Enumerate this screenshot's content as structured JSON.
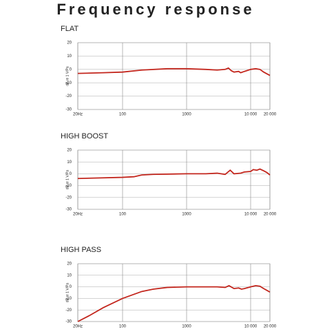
{
  "title": "Frequency response",
  "chart_data": [
    {
      "type": "line",
      "title": "FLAT",
      "y_label": "dB re 1 V/Pa",
      "xscale": "log",
      "grid": true,
      "xlim": [
        20,
        20000
      ],
      "ylim": [
        -30,
        20
      ],
      "xticks": [
        {
          "value": 20,
          "label": "20Hz"
        },
        100,
        1000,
        {
          "value": 10000,
          "label": "10 000"
        },
        {
          "value": 20000,
          "label": "20 000"
        }
      ],
      "yticks": [
        -30,
        -20,
        -10,
        0,
        10,
        20
      ],
      "series": [
        {
          "color": "#c3261d",
          "x": [
            20,
            50,
            100,
            200,
            500,
            1000,
            2000,
            3000,
            4000,
            4500,
            5000,
            5500,
            6500,
            7000,
            8000,
            10000,
            12000,
            14000,
            16000,
            20000
          ],
          "values": [
            -3,
            -2.5,
            -2,
            -0.5,
            0.5,
            0.5,
            0,
            -0.5,
            0,
            1,
            -1,
            -2,
            -1.5,
            -2.5,
            -1.5,
            0,
            0.5,
            0,
            -2,
            -4.5
          ]
        }
      ]
    },
    {
      "type": "line",
      "title": "HIGH BOOST",
      "y_label": "dB re 1 V/Pa",
      "xscale": "log",
      "grid": true,
      "xlim": [
        20,
        20000
      ],
      "ylim": [
        -30,
        20
      ],
      "xticks": [
        {
          "value": 20,
          "label": "20Hz"
        },
        100,
        1000,
        {
          "value": 10000,
          "label": "10 000"
        },
        {
          "value": 20000,
          "label": "20 000"
        }
      ],
      "yticks": [
        -30,
        -20,
        -10,
        0,
        10,
        20
      ],
      "series": [
        {
          "color": "#c3261d",
          "x": [
            20,
            100,
            150,
            200,
            300,
            1000,
            2000,
            3000,
            4000,
            4800,
            5500,
            7000,
            8000,
            10000,
            11000,
            12500,
            14000,
            16000,
            18000,
            20000
          ],
          "values": [
            -4,
            -3,
            -2.5,
            -1,
            -0.5,
            0,
            0,
            0.5,
            -0.5,
            3,
            0,
            0.5,
            1.5,
            2,
            3.5,
            3,
            4,
            2.5,
            1,
            -1
          ]
        }
      ]
    },
    {
      "type": "line",
      "title": "HIGH PASS",
      "y_label": "dB re 1 V/Pa",
      "xscale": "log",
      "grid": true,
      "xlim": [
        20,
        20000
      ],
      "ylim": [
        -30,
        20
      ],
      "xticks": [
        {
          "value": 20,
          "label": "20Hz"
        },
        100,
        1000,
        {
          "value": 10000,
          "label": "10 000"
        },
        {
          "value": 20000,
          "label": "20 000"
        }
      ],
      "yticks": [
        -30,
        -20,
        -10,
        0,
        10,
        20
      ],
      "series": [
        {
          "color": "#c3261d",
          "x": [
            20,
            30,
            50,
            100,
            200,
            300,
            500,
            1000,
            2000,
            3000,
            4000,
            4600,
            5500,
            6500,
            7200,
            8000,
            10000,
            12000,
            14000,
            16000,
            20000
          ],
          "values": [
            -30,
            -25,
            -18,
            -10,
            -4,
            -2,
            -0.5,
            0,
            0,
            0,
            -0.5,
            1,
            -1.5,
            -1,
            -2,
            -1.5,
            0,
            1,
            0.5,
            -1.5,
            -4.5
          ]
        }
      ]
    }
  ]
}
